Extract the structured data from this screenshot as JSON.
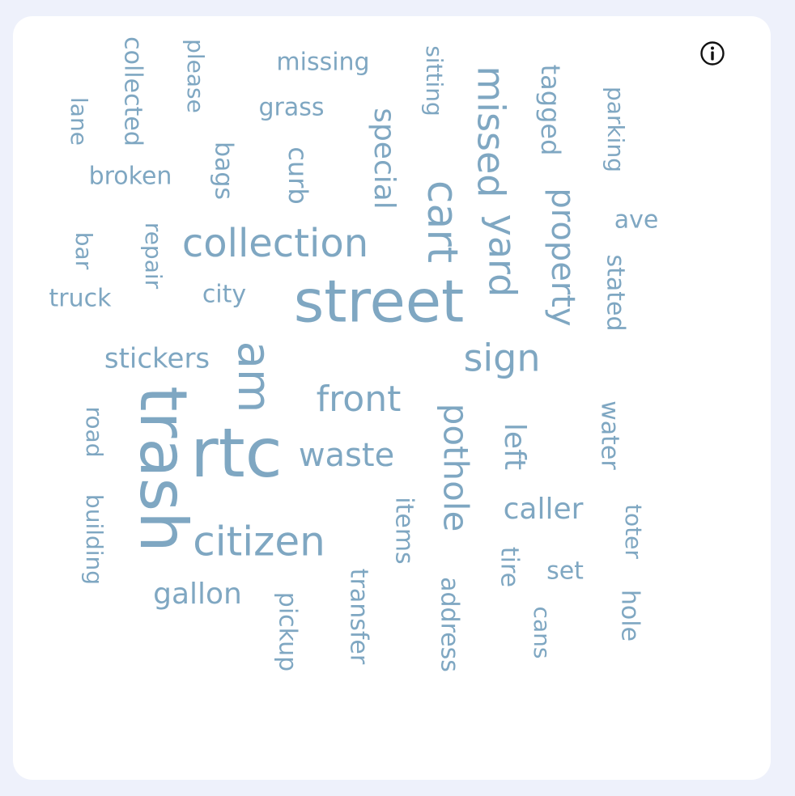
{
  "info_button": {
    "icon": "info-icon"
  },
  "chart_data": {
    "type": "wordcloud",
    "color": "#7fa7c2",
    "words": [
      {
        "text": "street",
        "weight": 10
      },
      {
        "text": "trash",
        "weight": 10
      },
      {
        "text": "rtc",
        "weight": 10
      },
      {
        "text": "am",
        "weight": 8
      },
      {
        "text": "cart",
        "weight": 7
      },
      {
        "text": "missed",
        "weight": 7
      },
      {
        "text": "yard",
        "weight": 7
      },
      {
        "text": "collection",
        "weight": 7
      },
      {
        "text": "citizen",
        "weight": 7
      },
      {
        "text": "sign",
        "weight": 6
      },
      {
        "text": "property",
        "weight": 6
      },
      {
        "text": "front",
        "weight": 6
      },
      {
        "text": "pothole",
        "weight": 6
      },
      {
        "text": "waste",
        "weight": 5
      },
      {
        "text": "special",
        "weight": 5
      },
      {
        "text": "curb",
        "weight": 4
      },
      {
        "text": "caller",
        "weight": 4
      },
      {
        "text": "tagged",
        "weight": 4
      },
      {
        "text": "stickers",
        "weight": 4
      },
      {
        "text": "gallon",
        "weight": 4
      },
      {
        "text": "left",
        "weight": 4
      },
      {
        "text": "broken",
        "weight": 3
      },
      {
        "text": "grass",
        "weight": 3
      },
      {
        "text": "missing",
        "weight": 3
      },
      {
        "text": "ave",
        "weight": 3
      },
      {
        "text": "city",
        "weight": 3
      },
      {
        "text": "truck",
        "weight": 3
      },
      {
        "text": "stated",
        "weight": 3
      },
      {
        "text": "water",
        "weight": 3
      },
      {
        "text": "parking",
        "weight": 3
      },
      {
        "text": "sitting",
        "weight": 3
      },
      {
        "text": "collected",
        "weight": 3
      },
      {
        "text": "please",
        "weight": 3
      },
      {
        "text": "bags",
        "weight": 3
      },
      {
        "text": "repair",
        "weight": 3
      },
      {
        "text": "items",
        "weight": 3
      },
      {
        "text": "address",
        "weight": 3
      },
      {
        "text": "transfer",
        "weight": 3
      },
      {
        "text": "pickup",
        "weight": 3
      },
      {
        "text": "road",
        "weight": 3
      },
      {
        "text": "building",
        "weight": 3
      },
      {
        "text": "toter",
        "weight": 3
      },
      {
        "text": "hole",
        "weight": 3
      },
      {
        "text": "set",
        "weight": 3
      },
      {
        "text": "tire",
        "weight": 3
      },
      {
        "text": "cans",
        "weight": 3
      },
      {
        "text": "lane",
        "weight": 3
      },
      {
        "text": "bar",
        "weight": 3
      }
    ]
  }
}
